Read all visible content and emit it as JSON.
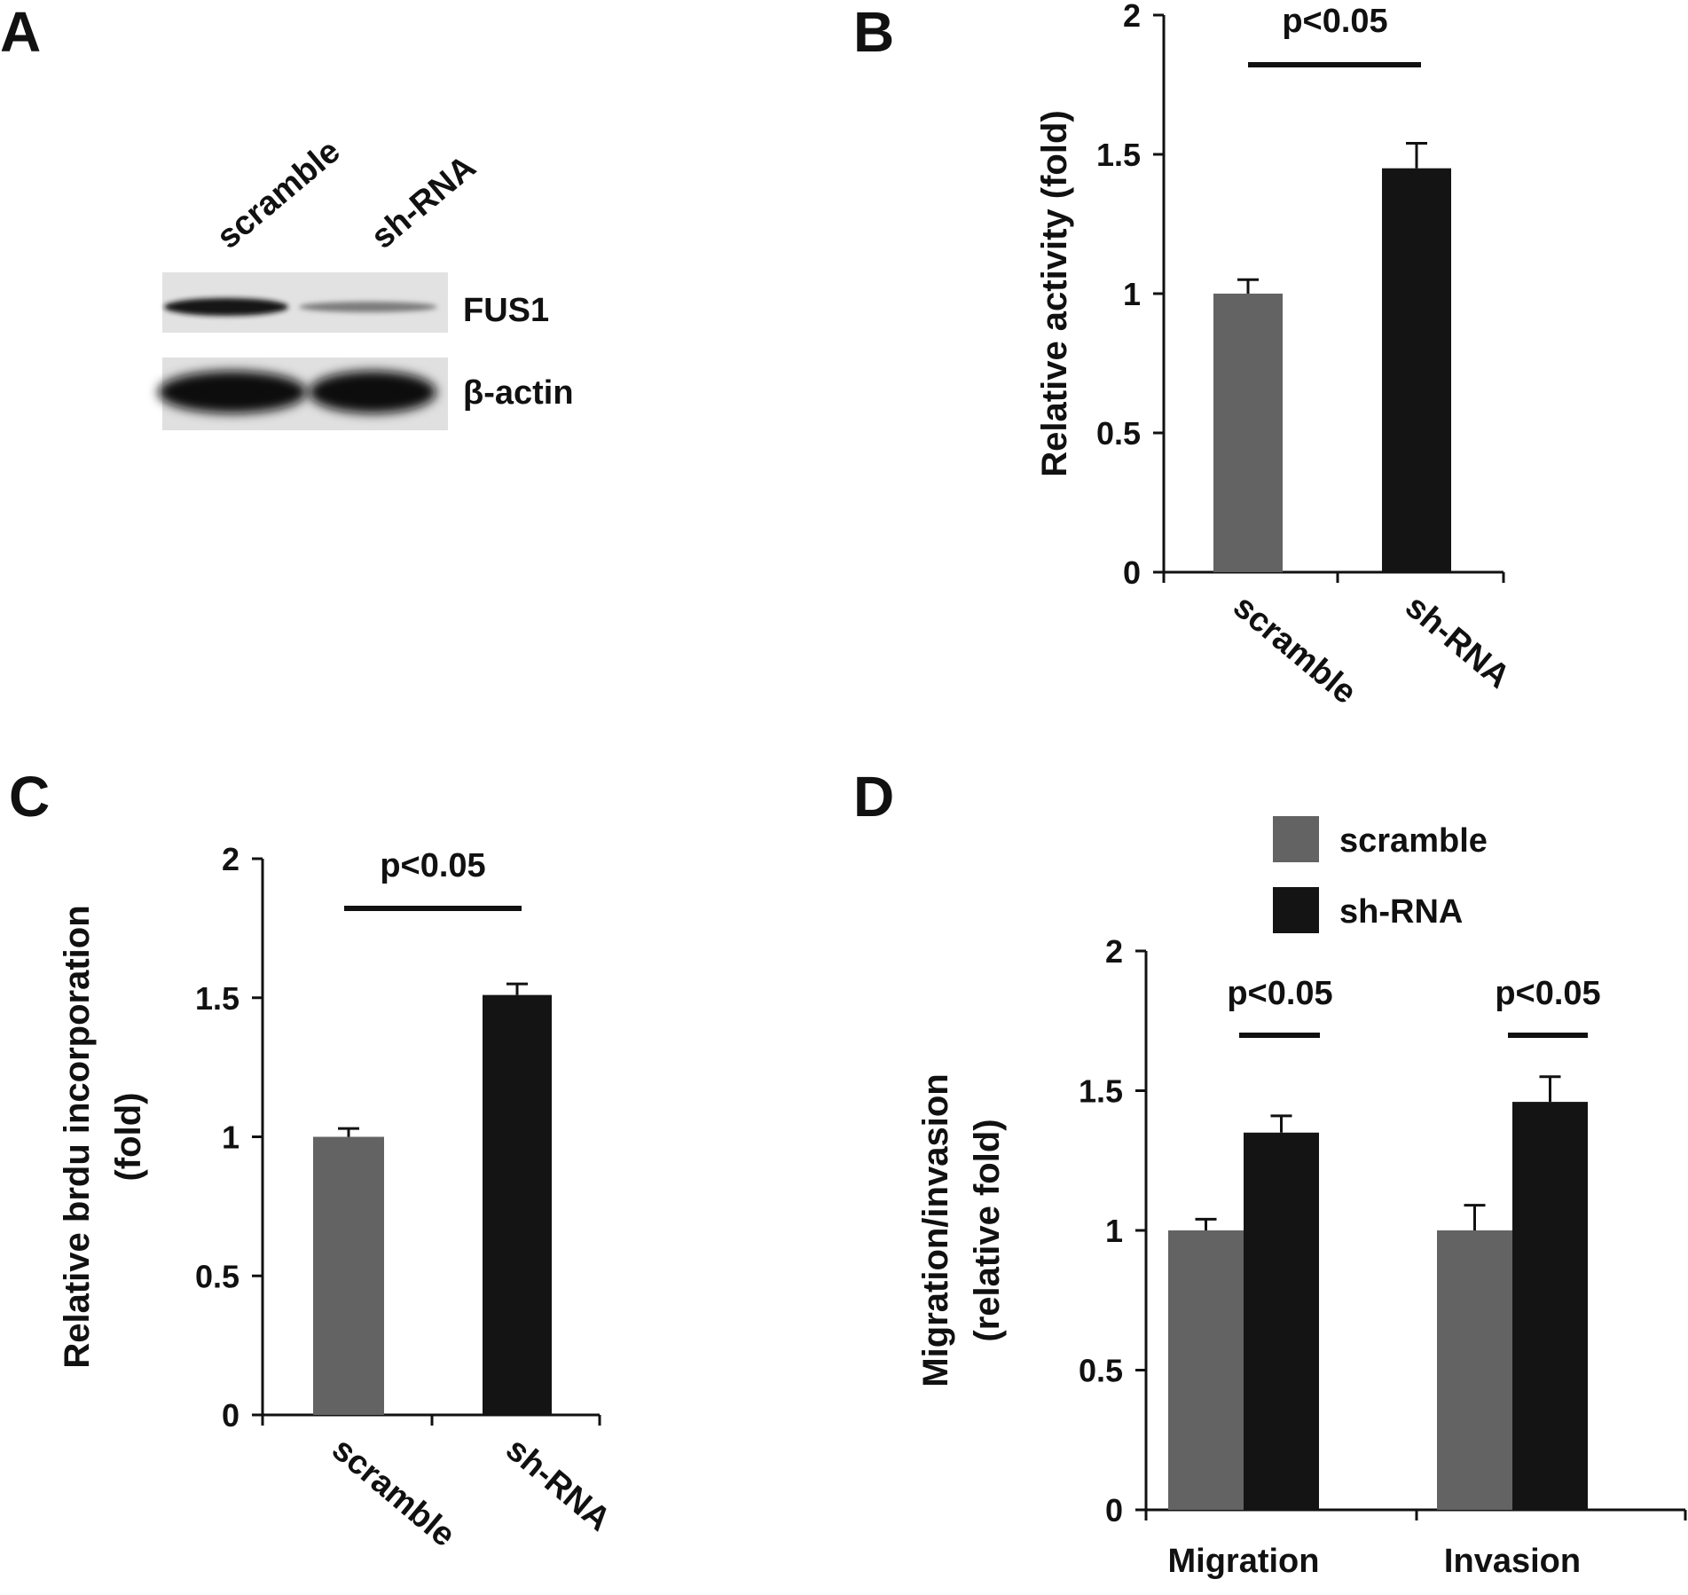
{
  "figure": {
    "panels": {
      "A": {
        "label": "A",
        "lanes": [
          "scramble",
          "sh-RNA"
        ],
        "bands": [
          "FUS1",
          "β-actin"
        ]
      },
      "B": {
        "label": "B"
      },
      "C": {
        "label": "C"
      },
      "D": {
        "label": "D"
      }
    }
  },
  "chart_data": [
    {
      "panel": "B",
      "type": "bar",
      "categories": [
        "scramble",
        "sh-RNA"
      ],
      "values": [
        1.0,
        1.45
      ],
      "errors": [
        0.05,
        0.09
      ],
      "colors": [
        "#636363",
        "#141414"
      ],
      "ylabel": "Relative activity (fold)",
      "ylim": [
        0,
        2
      ],
      "yticks": [
        "0",
        "0.5",
        "1",
        "1.5",
        "2"
      ],
      "annotations": [
        {
          "text": "p<0.05",
          "between": [
            "scramble",
            "sh-RNA"
          ]
        }
      ],
      "grid": false
    },
    {
      "panel": "C",
      "type": "bar",
      "categories": [
        "scramble",
        "sh-RNA"
      ],
      "values": [
        1.0,
        1.51
      ],
      "errors": [
        0.03,
        0.04
      ],
      "colors": [
        "#636363",
        "#141414"
      ],
      "ylabel": "Relative brdu incorporation",
      "ylabel2": "(fold)",
      "ylim": [
        0,
        2
      ],
      "yticks": [
        "0",
        "0.5",
        "1",
        "1.5",
        "2"
      ],
      "annotations": [
        {
          "text": "p<0.05",
          "between": [
            "scramble",
            "sh-RNA"
          ]
        }
      ],
      "grid": false
    },
    {
      "panel": "D",
      "type": "bar",
      "categories": [
        "Migration",
        "Invasion"
      ],
      "series": [
        {
          "name": "scramble",
          "values": [
            1.0,
            1.0
          ],
          "errors": [
            0.04,
            0.09
          ],
          "color": "#636363"
        },
        {
          "name": "sh-RNA",
          "values": [
            1.35,
            1.46
          ],
          "errors": [
            0.06,
            0.09
          ],
          "color": "#141414"
        }
      ],
      "ylabel": "Migration/invasion",
      "ylabel2": "(relative fold)",
      "ylim": [
        0,
        2
      ],
      "yticks": [
        "0",
        "0.5",
        "1",
        "1.5",
        "2"
      ],
      "annotations": [
        {
          "text": "p<0.05",
          "category": "Migration"
        },
        {
          "text": "p<0.05",
          "category": "Invasion"
        }
      ],
      "legend": "top-center",
      "grid": false
    }
  ]
}
